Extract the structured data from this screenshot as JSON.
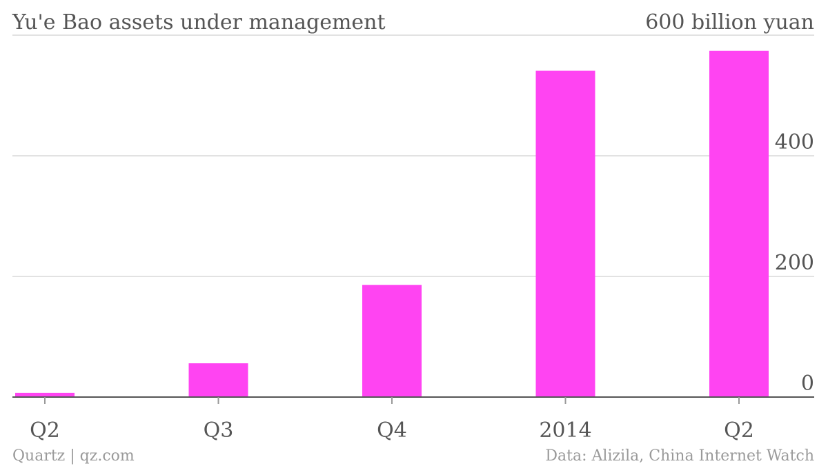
{
  "chart_data": {
    "type": "bar",
    "title": "Yu'e Bao assets under management",
    "unit_label": "600 billion yuan",
    "categories": [
      "Q2",
      "Q3",
      "Q4",
      "2014",
      "Q2"
    ],
    "values": [
      7,
      56,
      186,
      541,
      574
    ],
    "ylim": [
      0,
      600
    ],
    "yticks": [
      0,
      200,
      400
    ],
    "grid": true,
    "bar_color": "#ff44f2"
  },
  "footer": {
    "credit": "Quartz | qz.com",
    "source": "Data: Alizila, China Internet Watch"
  }
}
